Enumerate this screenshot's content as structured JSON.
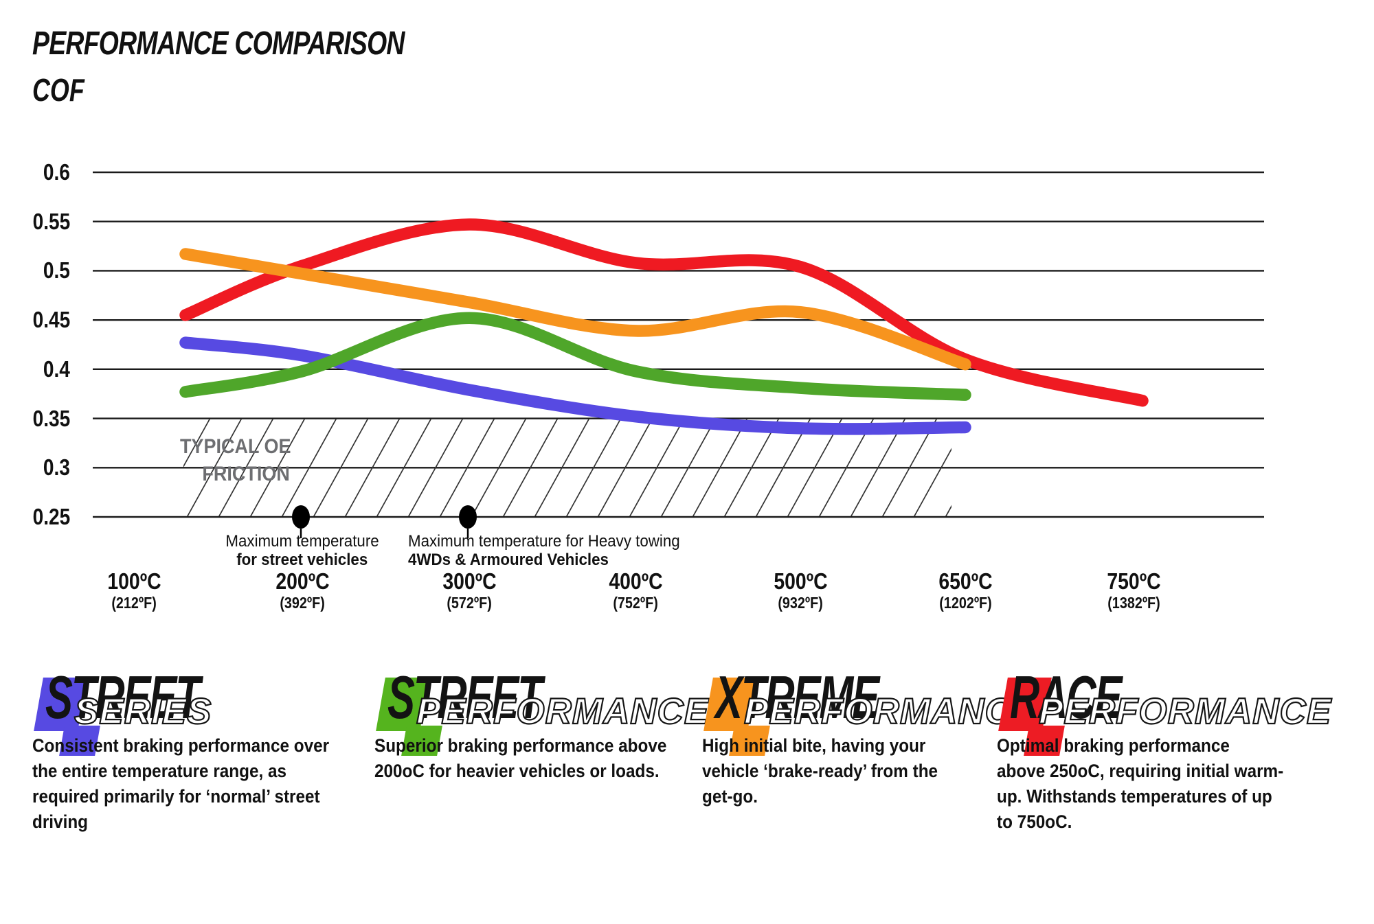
{
  "header": {
    "title": "PERFORMANCE COMPARISON",
    "axis_title": "COF"
  },
  "chart_data": {
    "type": "line",
    "title": "PERFORMANCE COMPARISON",
    "ylabel": "COF",
    "ylim": [
      0.25,
      0.6
    ],
    "grid": "horizontal",
    "legend_position": "bottom",
    "y_ticks": [
      {
        "label": "0.6",
        "value": 0.6
      },
      {
        "label": "0.55",
        "value": 0.55
      },
      {
        "label": "0.5",
        "value": 0.5
      },
      {
        "label": "0.45",
        "value": 0.45
      },
      {
        "label": "0.4",
        "value": 0.4
      },
      {
        "label": "0.35",
        "value": 0.35
      },
      {
        "label": "0.3",
        "value": 0.3
      },
      {
        "label": "0.25",
        "value": 0.25
      }
    ],
    "categories": [
      {
        "temp_c": 100,
        "celsius": "100ºC",
        "fahrenheit": "(212ºF)"
      },
      {
        "temp_c": 200,
        "celsius": "200ºC",
        "fahrenheit": "(392ºF)"
      },
      {
        "temp_c": 300,
        "celsius": "300ºC",
        "fahrenheit": "(572ºF)"
      },
      {
        "temp_c": 400,
        "celsius": "400ºC",
        "fahrenheit": "(752ºF)"
      },
      {
        "temp_c": 500,
        "celsius": "500ºC",
        "fahrenheit": "(932ºF)"
      },
      {
        "temp_c": 650,
        "celsius": "650ºC",
        "fahrenheit": "(1202ºF)"
      },
      {
        "temp_c": 750,
        "celsius": "750ºC",
        "fahrenheit": "(1382ºF)"
      }
    ],
    "series": [
      {
        "name": "Street Series",
        "color": "#574AE2",
        "values": [
          0.427,
          0.414,
          0.379,
          0.352,
          0.34,
          0.341,
          null
        ]
      },
      {
        "name": "Street Performance",
        "color": "#4FA62A",
        "values": [
          0.377,
          0.398,
          0.452,
          0.398,
          0.381,
          0.374,
          null
        ]
      },
      {
        "name": "Xtreme Performance",
        "color": "#F7941E",
        "values": [
          0.517,
          0.497,
          0.468,
          0.439,
          0.458,
          0.405,
          null
        ]
      },
      {
        "name": "Race Performance",
        "color": "#EF1A22",
        "values": [
          0.455,
          0.505,
          0.547,
          0.508,
          0.504,
          0.41,
          0.368
        ]
      }
    ],
    "oe_band": {
      "label": [
        "TYPICAL OE",
        "FRICTION"
      ],
      "cof_range": [
        0.25,
        0.35
      ],
      "temp_range_c": [
        100,
        650
      ]
    },
    "annotations": [
      {
        "temp_c": 200,
        "lines": [
          "Maximum temperature",
          "for street vehicles"
        ]
      },
      {
        "temp_c": 300,
        "lines": [
          "Maximum temperature for Heavy towing",
          "4WDs & Armoured Vehicles"
        ]
      }
    ]
  },
  "legend": [
    {
      "word1": "STREET",
      "word2": "SERIES",
      "color": "#574AE2",
      "description_lines": [
        "Consistent braking performance over",
        "the entire temperature range, as",
        "required primarily for ‘normal’ street",
        "driving"
      ]
    },
    {
      "word1": "STREET",
      "word2": "PERFORMANCE",
      "color": "#55B41E",
      "description_lines": [
        "Superior braking performance above",
        "200oC for heavier vehicles or loads."
      ]
    },
    {
      "word1": "XTREME",
      "word2": "PERFORMANCE",
      "color": "#F7941E",
      "description_lines": [
        "High initial bite, having your",
        "vehicle ‘brake-ready’ from the",
        "get-go."
      ]
    },
    {
      "word1": "RACE",
      "word2": "PERFORMANCE",
      "color": "#ED1C24",
      "description_lines": [
        "Optimal braking performance",
        "above 250oC, requiring initial warm-",
        "up. Withstands temperatures of up",
        "to 750oC."
      ]
    }
  ]
}
